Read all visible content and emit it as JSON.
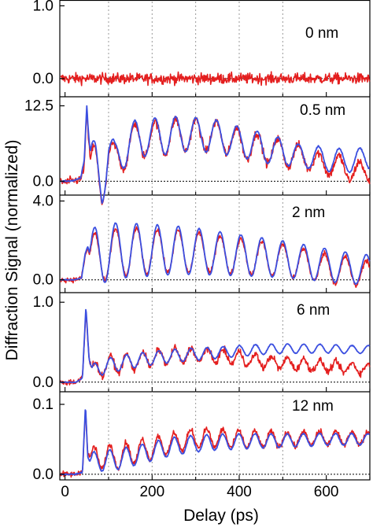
{
  "chart_data": {
    "type": "line",
    "xlabel": "Delay (ps)",
    "ylabel": "Diffraction Signal (normalized)",
    "xlim": [
      -12,
      700
    ],
    "xticks": [
      0,
      200,
      400,
      600
    ],
    "xtick_labels": [
      "0",
      "200",
      "400",
      "600"
    ],
    "minor_xticks": [
      100,
      300,
      500,
      700
    ],
    "series_colors": {
      "measured": "#e41e1e",
      "simulated": "#3b4fe0"
    },
    "vertical_dotted_lines_x": [
      100,
      200,
      300,
      400,
      500
    ],
    "panels": [
      {
        "label": "0 nm",
        "ylim": [
          -0.25,
          1.08
        ],
        "yticks": [
          1.0,
          0.0
        ],
        "ytick_labels": [
          "1.0",
          "0.0"
        ],
        "series": [
          {
            "color_key": "measured",
            "x": [
              0,
              100,
              200,
              300,
              400,
              500,
              600,
              700
            ],
            "y": [
              0,
              0,
              0,
              0,
              0,
              0,
              0,
              0
            ],
            "noise": 0.07
          }
        ]
      },
      {
        "label": "0.5 nm",
        "ylim": [
          -2.3,
          14.0
        ],
        "yticks": [
          12.5,
          0.0
        ],
        "ytick_labels": [
          "12.5",
          "0.0"
        ],
        "series": [
          {
            "color_key": "measured",
            "x": [
              0,
              20,
              36,
              44,
              50,
              58,
              70,
              85,
              100,
              115,
              135,
              160,
              185,
              210,
              235,
              260,
              285,
              310,
              335,
              360,
              385,
              410,
              435,
              460,
              485,
              510,
              535,
              560,
              585,
              610,
              635,
              660,
              685,
              700
            ],
            "y": [
              -0.2,
              0.1,
              0.3,
              2.5,
              11.5,
              2.0,
              2.5,
              -1.0,
              4.6,
              2.5,
              5.3,
              6.5,
              7.2,
              7.0,
              7.4,
              7.6,
              7.8,
              7.4,
              7.7,
              7.1,
              6.8,
              6.0,
              5.9,
              5.2,
              5.0,
              4.6,
              3.9,
              4.1,
              2.6,
              3.0,
              2.2,
              1.8,
              1.4,
              1.5
            ],
            "osc_amp": 3.5,
            "osc_period": 47,
            "noise": 0.7
          },
          {
            "color_key": "simulated",
            "x": [
              0,
              20,
              36,
              44,
              50,
              58,
              70,
              85,
              100,
              115,
              135,
              160,
              185,
              210,
              235,
              260,
              285,
              310,
              335,
              360,
              385,
              410,
              435,
              460,
              485,
              510,
              535,
              560,
              585,
              610,
              635,
              660,
              685,
              700
            ],
            "y": [
              0.0,
              0.1,
              0.5,
              3.5,
              12.5,
              3.0,
              3.0,
              -0.6,
              5.4,
              2.8,
              5.6,
              6.8,
              7.4,
              7.3,
              7.6,
              7.7,
              7.9,
              7.5,
              7.7,
              7.2,
              6.8,
              6.3,
              6.0,
              5.4,
              5.0,
              4.9,
              4.0,
              4.3,
              3.6,
              3.7,
              3.4,
              3.4,
              3.7,
              3.9
            ],
            "osc_amp": 3.8,
            "osc_period": 47,
            "noise": 0.12
          }
        ]
      },
      {
        "label": "2 nm",
        "ylim": [
          -0.65,
          4.3
        ],
        "yticks": [
          4.0,
          0.0
        ],
        "ytick_labels": [
          "4.0",
          "0.0"
        ],
        "series": [
          {
            "color_key": "measured",
            "x": [
              0,
              20,
              38,
              46,
              52,
              60,
              75,
              100,
              130,
              160,
              200,
              250,
              300,
              350,
              400,
              450,
              500,
              550,
              600,
              650,
              700
            ],
            "y": [
              0.0,
              0.0,
              0.1,
              1.2,
              1.6,
              1.0,
              1.1,
              1.3,
              1.4,
              1.45,
              1.45,
              1.45,
              1.4,
              1.3,
              1.2,
              1.1,
              1.0,
              0.8,
              0.6,
              0.45,
              0.3
            ],
            "osc_amp": 1.35,
            "osc_period": 48,
            "noise": 0.12
          },
          {
            "color_key": "simulated",
            "x": [
              0,
              20,
              38,
              46,
              52,
              60,
              75,
              100,
              130,
              160,
              200,
              250,
              300,
              350,
              400,
              450,
              500,
              550,
              600,
              650,
              700
            ],
            "y": [
              0.0,
              0.0,
              0.1,
              1.3,
              1.7,
              1.1,
              1.2,
              1.4,
              1.5,
              1.5,
              1.5,
              1.5,
              1.45,
              1.35,
              1.25,
              1.15,
              1.05,
              0.9,
              0.75,
              0.6,
              0.5
            ],
            "osc_amp": 1.55,
            "osc_period": 48,
            "noise": 0.02
          }
        ]
      },
      {
        "label": "6 nm",
        "ylim": [
          -0.12,
          1.12
        ],
        "yticks": [
          1.0,
          0.0
        ],
        "ytick_labels": [
          "1.0",
          "0.0"
        ],
        "series": [
          {
            "color_key": "measured",
            "x": [
              0,
              25,
              40,
              48,
              55,
              62,
              80,
              110,
              150,
              200,
              250,
              300,
              350,
              400,
              450,
              500,
              550,
              600,
              650,
              700
            ],
            "y": [
              0.0,
              0.0,
              0.05,
              0.9,
              0.3,
              0.12,
              0.18,
              0.22,
              0.25,
              0.3,
              0.33,
              0.34,
              0.33,
              0.3,
              0.26,
              0.24,
              0.22,
              0.2,
              0.18,
              0.17
            ],
            "osc_amp": 0.12,
            "osc_period": 37,
            "noise": 0.04
          },
          {
            "color_key": "simulated",
            "x": [
              0,
              25,
              40,
              48,
              55,
              62,
              80,
              110,
              150,
              200,
              250,
              300,
              350,
              400,
              450,
              500,
              550,
              600,
              650,
              700
            ],
            "y": [
              0.0,
              0.0,
              0.05,
              0.95,
              0.3,
              0.12,
              0.18,
              0.22,
              0.26,
              0.3,
              0.33,
              0.35,
              0.37,
              0.39,
              0.41,
              0.42,
              0.42,
              0.42,
              0.41,
              0.41
            ],
            "osc_amp": 0.1,
            "osc_period": 37,
            "noise": 0.005
          }
        ]
      },
      {
        "label": "12 nm",
        "ylim": [
          -0.008,
          0.118
        ],
        "yticks": [
          0.1,
          0.0
        ],
        "ytick_labels": [
          "0.1",
          "0.0"
        ],
        "series": [
          {
            "color_key": "measured",
            "x": [
              0,
              25,
              40,
              47,
              52,
              60,
              80,
              110,
              150,
              200,
              250,
              300,
              350,
              400,
              450,
              500,
              550,
              600,
              650,
              700
            ],
            "y": [
              0.0,
              0.0,
              0.004,
              0.095,
              0.03,
              0.02,
              0.025,
              0.025,
              0.03,
              0.038,
              0.045,
              0.052,
              0.052,
              0.05,
              0.05,
              0.05,
              0.051,
              0.052,
              0.052,
              0.052
            ],
            "osc_amp": 0.018,
            "osc_period": 37,
            "noise": 0.004
          },
          {
            "color_key": "simulated",
            "x": [
              0,
              25,
              40,
              47,
              52,
              60,
              80,
              110,
              150,
              200,
              250,
              300,
              350,
              400,
              450,
              500,
              550,
              600,
              650,
              700
            ],
            "y": [
              0.0,
              0.0,
              0.003,
              0.1,
              0.025,
              0.015,
              0.02,
              0.02,
              0.025,
              0.033,
              0.04,
              0.044,
              0.046,
              0.047,
              0.048,
              0.048,
              0.049,
              0.05,
              0.05,
              0.05
            ],
            "osc_amp": 0.016,
            "osc_period": 37,
            "noise": 0.0008
          }
        ]
      }
    ]
  }
}
